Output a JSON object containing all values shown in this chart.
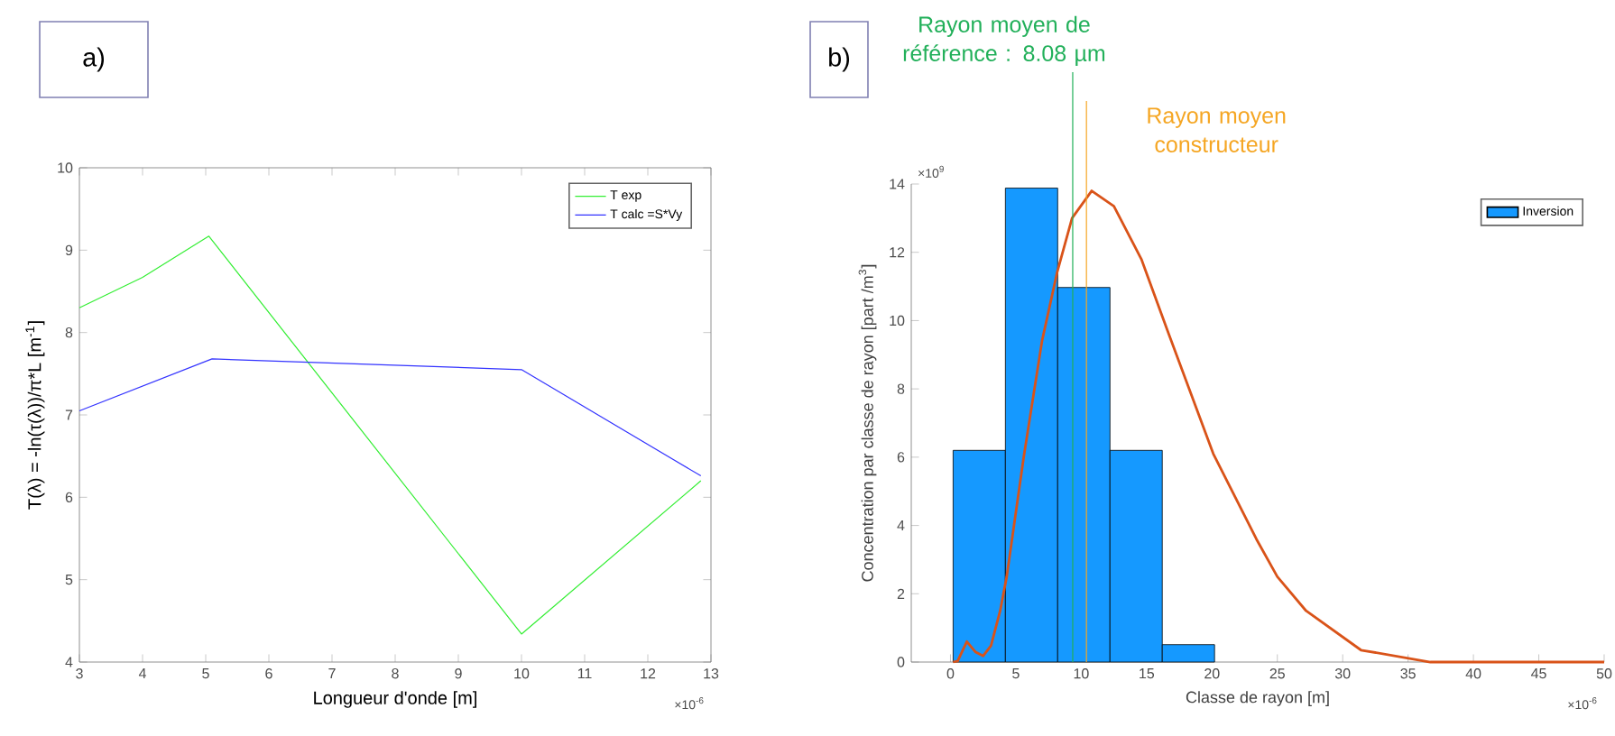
{
  "chart_data": [
    {
      "type": "line",
      "xlabel": "Longueur d'onde [m]",
      "ylabel": "T(λ) = -ln(τ(λ))/π*L [m$^{-1}$]",
      "xlim": [
        3,
        13
      ],
      "xticks": [
        3,
        4,
        5,
        6,
        7,
        8,
        9,
        10,
        11,
        12,
        13
      ],
      "ylim": [
        4,
        10
      ],
      "yticks": [
        4,
        5,
        6,
        7,
        8,
        9,
        10
      ],
      "legend": "top right",
      "annotations": [
        "a)",
        "×10$^{-6}$"
      ],
      "series": [
        {
          "name": "T exp",
          "color": "#33ee33",
          "x": [
            3,
            4,
            5.05,
            10,
            12.84
          ],
          "values": [
            8.3,
            8.67,
            9.17,
            4.34,
            6.2
          ]
        },
        {
          "name": "T calc =S*Vy",
          "color": "#3333ff",
          "x": [
            3,
            5.1,
            10,
            12.84
          ],
          "values": [
            7.05,
            7.68,
            7.55,
            6.26
          ]
        }
      ]
    },
    {
      "type": "histogram",
      "xlabel": "Classe de rayon [m]",
      "ylabel": "Concentration par classe de rayon [part /m$^{3}$]",
      "xlim": [
        -3,
        50
      ],
      "xticks": [
        0,
        5,
        10,
        15,
        20,
        25,
        30,
        35,
        40,
        45,
        50
      ],
      "ylim": [
        0,
        14
      ],
      "yticks": [
        0,
        2,
        4,
        6,
        8,
        10,
        12,
        14
      ],
      "legend": "top right",
      "annotations": [
        "b)",
        "×10$^{-6}$",
        "×10$^{9}$",
        "Rayon moyen de référence : 8.08 µm"
      ],
      "ref_lines": [
        {
          "axis": "x",
          "value": 9.35,
          "color": "#22b05a"
        },
        {
          "axis": "x",
          "value": 10.4,
          "label": "Rayon moyen constructeur",
          "color": "#f5a623"
        }
      ],
      "series": [
        {
          "type": "histogram",
          "name": "Inversion",
          "color": "#1599ff",
          "bins": [
            0.2,
            4.2,
            8.2,
            12.2,
            16.2,
            20.2
          ],
          "values": [
            6.2,
            13.88,
            10.97,
            6.2,
            0.51
          ]
        },
        {
          "type": "line",
          "color": "#d95319",
          "x": [
            0.2,
            0.55,
            1.25,
            1.9,
            2.5,
            3.1,
            3.8,
            4.3,
            5.6,
            7.0,
            8.15,
            9.3,
            10.8,
            12.5,
            14.6,
            16.7,
            20.1,
            23.4,
            25,
            27.2,
            31.4,
            36.7,
            50
          ],
          "values": [
            0,
            0.03,
            0.6,
            0.3,
            0.18,
            0.48,
            1.5,
            2.5,
            6.0,
            9.4,
            11.4,
            13.0,
            13.8,
            13.35,
            11.8,
            9.6,
            6.1,
            3.6,
            2.5,
            1.5,
            0.35,
            0,
            0
          ]
        }
      ]
    }
  ]
}
